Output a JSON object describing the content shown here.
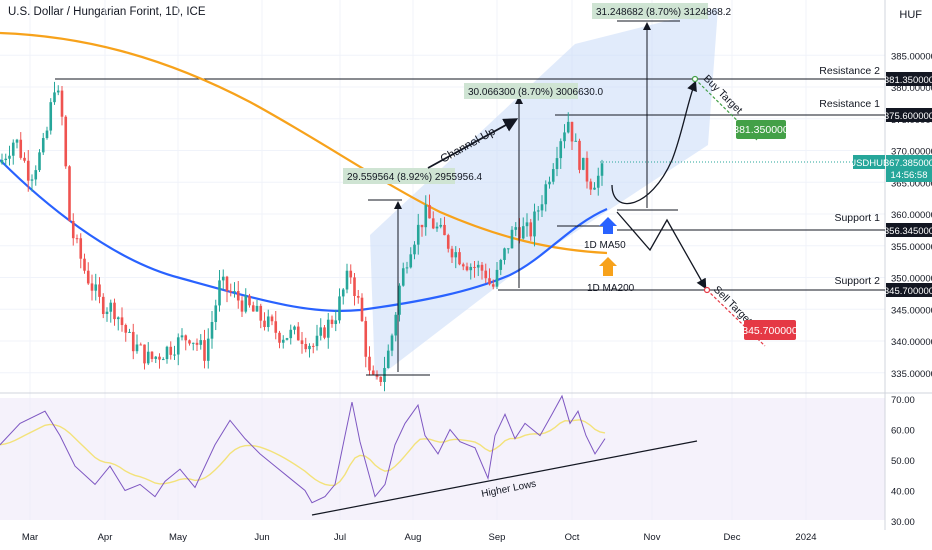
{
  "header": {
    "title": "U.S. Dollar / Hungarian Forint, 1D, ICE",
    "currency": "HUF"
  },
  "price_axis": {
    "ticks": [
      "385.000000",
      "380.000000",
      "375.000000",
      "370.000000",
      "365.000000",
      "360.000000",
      "355.000000",
      "350.000000",
      "345.000000",
      "340.000000",
      "335.000000"
    ]
  },
  "rsi_axis": {
    "ticks": [
      "70.00",
      "60.00",
      "50.00",
      "40.00",
      "30.00"
    ]
  },
  "time_axis": {
    "labels": [
      "Mar",
      "Apr",
      "May",
      "Jun",
      "Jul",
      "Aug",
      "Sep",
      "Oct",
      "Nov",
      "Dec",
      "2024"
    ]
  },
  "levels": {
    "resistance2": {
      "name": "Resistance 2",
      "value": "381.350000"
    },
    "resistance1": {
      "name": "Resistance 1",
      "value": "375.600000"
    },
    "support1": {
      "name": "Support 1",
      "value": "356.345000"
    },
    "support2": {
      "name": "Support 2",
      "value": "345.700000"
    }
  },
  "current": {
    "symbol": "USDHUF",
    "price": "367.385000",
    "countdown": "14:56:58"
  },
  "annotations": {
    "measure1": "29.559564 (8.92%) 2955956.4",
    "measure2": "30.066300 (8.70%) 3006630.0",
    "measure3": "31.248682 (8.70%) 3124868.2",
    "channel": "Channel Up",
    "ma50": "1D MA50",
    "ma200": "1D MA200",
    "buy_target": "Buy Target",
    "buy_value": "381.350000",
    "sell_target": "Sell Target",
    "sell_value": "345.700000",
    "higher_lows": "Higher Lows"
  },
  "colors": {
    "up": "#26a69a",
    "down": "#ef5350",
    "ma50": "#2962ff",
    "ma200": "#f7a21b",
    "rsi": "#7e57c2",
    "rsi_ma": "#f3e27a",
    "channel": "#c9daf8",
    "buy": "#43a047",
    "sell": "#e53945",
    "current": "#26a69a"
  },
  "chart_data": {
    "type": "candlestick",
    "title": "U.S. Dollar / Hungarian Forint, 1D, ICE",
    "y_range": [
      331,
      392
    ],
    "x_dates": [
      "Mar",
      "Apr",
      "May",
      "Jun",
      "Jul",
      "Aug",
      "Sep",
      "Oct",
      "Nov",
      "Dec",
      "2024"
    ],
    "ohlc_approx": [
      [
        366,
        373,
        361,
        368
      ],
      [
        372,
        381,
        366,
        375
      ],
      [
        358,
        362,
        348,
        352
      ],
      [
        346,
        351,
        342,
        344
      ],
      [
        340,
        347,
        336,
        338
      ],
      [
        339,
        352,
        334,
        349
      ],
      [
        347,
        351,
        342,
        344
      ],
      [
        343,
        346,
        339,
        341
      ],
      [
        339,
        352,
        332,
        335
      ],
      [
        334,
        339,
        331,
        335
      ],
      [
        348,
        362,
        345,
        359
      ],
      [
        356,
        361,
        350,
        354
      ],
      [
        353,
        357,
        347,
        355
      ],
      [
        358,
        366,
        355,
        364
      ],
      [
        369,
        376,
        365,
        371
      ],
      [
        366,
        370,
        361,
        366
      ],
      [
        364,
        368,
        362,
        367.385
      ]
    ],
    "series": [
      {
        "name": "1D MA50",
        "points": [
          [
            0,
            365
          ],
          [
            30,
            357
          ],
          [
            60,
            352
          ],
          [
            90,
            348
          ],
          [
            120,
            344
          ],
          [
            150,
            342
          ],
          [
            180,
            341
          ],
          [
            200,
            341
          ],
          [
            240,
            345
          ],
          [
            260,
            352
          ],
          [
            280,
            359
          ]
        ]
      },
      {
        "name": "1D MA200",
        "points": [
          [
            0,
            388.5
          ],
          [
            40,
            387
          ],
          [
            80,
            384.5
          ],
          [
            120,
            380
          ],
          [
            150,
            375
          ],
          [
            180,
            368
          ],
          [
            200,
            362
          ],
          [
            220,
            357.5
          ],
          [
            240,
            354.5
          ],
          [
            260,
            352.8
          ],
          [
            280,
            352
          ]
        ]
      }
    ],
    "levels": {
      "Resistance 2": 381.35,
      "Resistance 1": 375.6,
      "Support 1": 356.345,
      "Support 2": 345.7
    },
    "last_price": 367.385,
    "rsi": {
      "y_range": [
        30,
        70
      ],
      "values_approx": [
        62,
        47,
        44,
        38,
        46,
        52,
        43,
        38,
        60,
        65,
        48,
        62,
        70,
        64,
        58,
        52,
        56
      ]
    }
  }
}
